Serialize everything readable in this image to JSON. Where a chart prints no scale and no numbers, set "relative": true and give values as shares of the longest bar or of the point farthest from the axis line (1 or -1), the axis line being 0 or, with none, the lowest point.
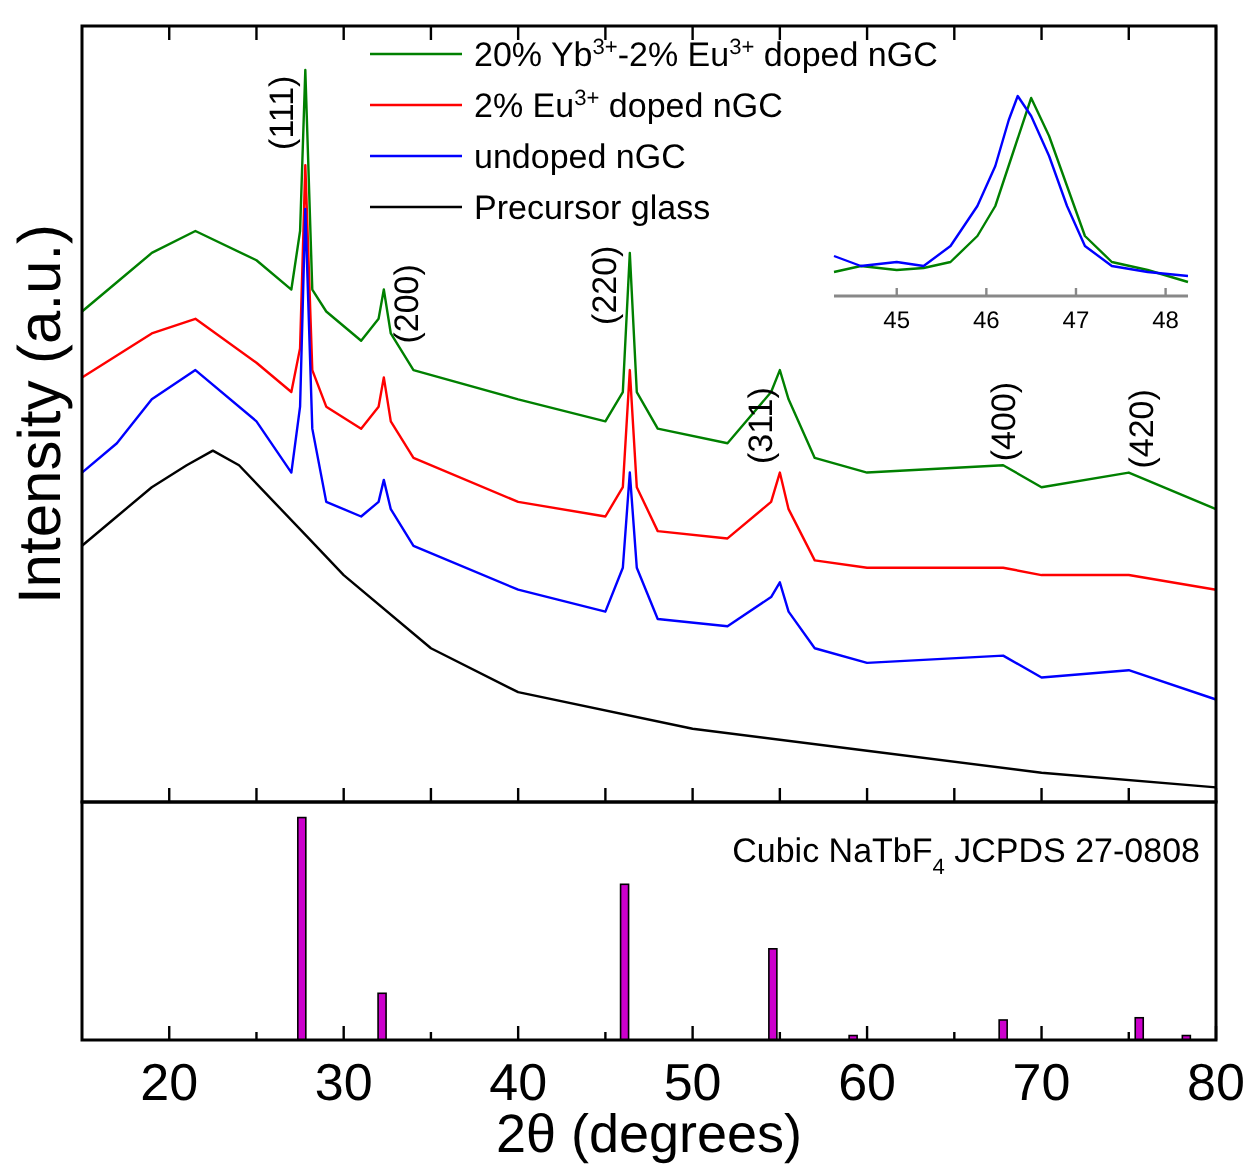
{
  "chart_data": [
    {
      "type": "line",
      "relative": true,
      "ylabel": "Intensity (a.u.)",
      "xlim": [
        15,
        80
      ],
      "xticks": [
        20,
        25,
        30,
        35,
        40,
        45,
        50,
        55,
        60,
        65,
        70,
        75,
        80
      ],
      "tick_labels": false,
      "legend": "top",
      "x": [
        15,
        17,
        19,
        21.5,
        25,
        27,
        27.5,
        27.8,
        28.2,
        29,
        31,
        32,
        32.3,
        32.7,
        34,
        40,
        45,
        46,
        46.4,
        46.8,
        48,
        52,
        54.5,
        55,
        55.5,
        57,
        60,
        67.8,
        70,
        75,
        80
      ],
      "series": [
        {
          "name": "20% Yb$^{3+}$-2% Eu$^{3+}$ doped nGC",
          "color": "#008000",
          "values": [
            0.67,
            0.71,
            0.75,
            0.78,
            0.74,
            0.7,
            0.78,
            1,
            0.7,
            0.67,
            0.63,
            0.66,
            0.7,
            0.64,
            0.59,
            0.55,
            0.52,
            0.56,
            0.75,
            0.56,
            0.51,
            0.49,
            0.56,
            0.59,
            0.55,
            0.47,
            0.45,
            0.46,
            0.43,
            0.45,
            0.4
          ]
        },
        {
          "name": "2% Eu$^{3+}$ doped nGC",
          "color": "#ff0000",
          "values": [
            0.58,
            0.61,
            0.64,
            0.66,
            0.6,
            0.56,
            0.62,
            0.87,
            0.59,
            0.54,
            0.51,
            0.54,
            0.58,
            0.52,
            0.47,
            0.41,
            0.39,
            0.43,
            0.59,
            0.43,
            0.37,
            0.36,
            0.41,
            0.45,
            0.4,
            0.33,
            0.32,
            0.32,
            0.31,
            0.31,
            0.29
          ]
        },
        {
          "name": "undoped nGC",
          "color": "#0000ff",
          "values": [
            0.45,
            0.49,
            0.55,
            0.59,
            0.52,
            0.45,
            0.54,
            0.81,
            0.51,
            0.41,
            0.39,
            0.41,
            0.44,
            0.4,
            0.35,
            0.29,
            0.26,
            0.32,
            0.45,
            0.32,
            0.25,
            0.24,
            0.28,
            0.3,
            0.26,
            0.21,
            0.19,
            0.2,
            0.17,
            0.18,
            0.14
          ]
        },
        {
          "name": "Precursor glass",
          "color": "#000000",
          "x": [
            15,
            17,
            19,
            21,
            22.5,
            24,
            26,
            28,
            30,
            35,
            40,
            50,
            60,
            70,
            80
          ],
          "values": [
            0.35,
            0.39,
            0.43,
            0.46,
            0.48,
            0.46,
            0.41,
            0.36,
            0.31,
            0.21,
            0.15,
            0.1,
            0.07,
            0.04,
            0.02
          ]
        }
      ],
      "annotations": [
        {
          "text": "(111)",
          "x": 27.8,
          "y": 1
        },
        {
          "text": "(200)",
          "x": 32.3,
          "y": 0.7
        },
        {
          "text": "(220)",
          "x": 46.4,
          "y": 0.75
        },
        {
          "text": "(311)",
          "x": 55,
          "y": 0.59
        },
        {
          "text": "(400)",
          "x": 67.8,
          "y": 0.46
        },
        {
          "text": "(420)",
          "x": 75,
          "y": 0.45
        }
      ]
    },
    {
      "type": "line",
      "relative": true,
      "xlim": [
        44.3,
        48.25
      ],
      "xticks": [
        45,
        46,
        47,
        48
      ],
      "tick_labels": "x",
      "series": [
        {
          "color": "#008000",
          "x": [
            44.3,
            44.6,
            45,
            45.3,
            45.6,
            45.9,
            46.1,
            46.3,
            46.5,
            46.7,
            46.9,
            47.1,
            47.4,
            47.8,
            48.25
          ],
          "values": [
            0.12,
            0.15,
            0.13,
            0.14,
            0.17,
            0.3,
            0.45,
            0.72,
            0.99,
            0.8,
            0.55,
            0.3,
            0.17,
            0.13,
            0.07
          ]
        },
        {
          "color": "#0000ff",
          "x": [
            44.3,
            44.6,
            45,
            45.3,
            45.6,
            45.9,
            46.1,
            46.25,
            46.35,
            46.5,
            46.7,
            46.9,
            47.1,
            47.4,
            47.8,
            48.25
          ],
          "values": [
            0.2,
            0.15,
            0.17,
            0.15,
            0.25,
            0.45,
            0.65,
            0.88,
            1,
            0.9,
            0.7,
            0.45,
            0.25,
            0.15,
            0.12,
            0.1
          ]
        }
      ]
    },
    {
      "type": "bar",
      "relative": true,
      "title": "Cubic NaTbF$_{4}$ JCPDS 27-0808",
      "xlabel": "2θ (degrees)",
      "xlim": [
        15,
        80
      ],
      "xticks": [
        20,
        {
          "value": 25,
          "label": null
        },
        30,
        {
          "value": 35,
          "label": null
        },
        40,
        {
          "value": 45,
          "label": null
        },
        50,
        {
          "value": 55,
          "label": null
        },
        60,
        {
          "value": 65,
          "label": null
        },
        70,
        {
          "value": 75,
          "label": null
        },
        80
      ],
      "tick_labels": "x",
      "color": "#cc00cc",
      "x": [
        27.6,
        32.2,
        46.1,
        54.6,
        59.2,
        67.8,
        75.6,
        78.3
      ],
      "values": [
        1,
        0.21,
        0.7,
        0.41,
        0.02,
        0.09,
        0.1,
        0.02
      ]
    }
  ]
}
